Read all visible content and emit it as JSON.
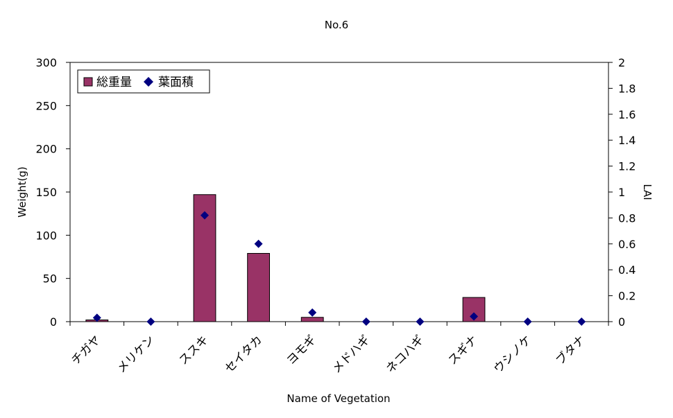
{
  "chart_data": {
    "type": "bar",
    "title": "No.6",
    "xlabel": "Name of Vegetation",
    "ylabel": "Weight(g)",
    "y2label": "LAI",
    "categories": [
      "チガヤ",
      "メリケン",
      "ススキ",
      "セイタカ",
      "ヨモギ",
      "メドハギ",
      "ネコハギ",
      "スギナ",
      "ウシノケ",
      "ブタナ"
    ],
    "ylim": [
      0,
      300
    ],
    "yticks": [
      0,
      50,
      100,
      150,
      200,
      250,
      300
    ],
    "y2lim": [
      0,
      2
    ],
    "y2ticks": [
      "0",
      "0.2",
      "0.4",
      "0.6",
      "0.8",
      "1",
      "1.2",
      "1.4",
      "1.6",
      "1.8",
      "2"
    ],
    "grid": false,
    "legend_position": "top-left",
    "series": [
      {
        "name": "総重量",
        "kind": "bar",
        "axis": "left",
        "color": "#993366",
        "values": [
          2,
          0,
          147,
          79,
          5,
          0,
          0,
          28,
          0,
          0
        ]
      },
      {
        "name": "葉面積",
        "kind": "scatter",
        "marker": "diamond",
        "axis": "right",
        "color": "#000080",
        "values": [
          0.03,
          0,
          0.82,
          0.6,
          0.07,
          0,
          0,
          0.04,
          0,
          0
        ]
      }
    ]
  }
}
